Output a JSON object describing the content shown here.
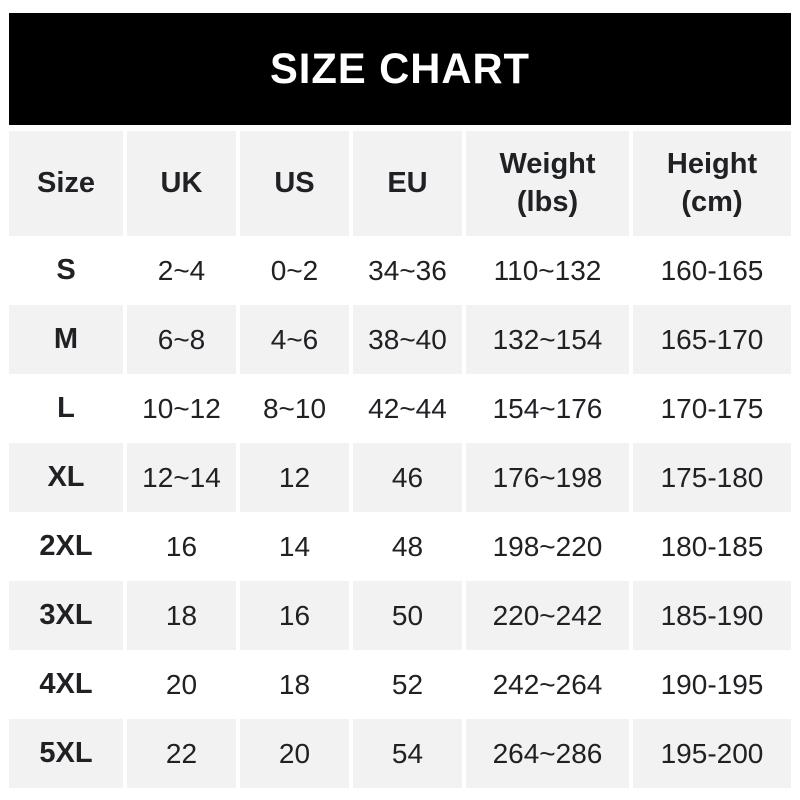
{
  "title": "SIZE CHART",
  "colors": {
    "banner_background": "#000000",
    "banner_text": "#ffffff",
    "stripe_background": "#f2f2f2",
    "row_background": "#ffffff",
    "text": "#202124"
  },
  "chart_data": {
    "type": "table",
    "title": "SIZE CHART",
    "columns": [
      {
        "label": "Size",
        "sublabel": ""
      },
      {
        "label": "UK",
        "sublabel": ""
      },
      {
        "label": "US",
        "sublabel": ""
      },
      {
        "label": "EU",
        "sublabel": ""
      },
      {
        "label": "Weight",
        "sublabel": "(lbs)"
      },
      {
        "label": "Height",
        "sublabel": "(cm)"
      }
    ],
    "rows": [
      {
        "size": "S",
        "uk": "2~4",
        "us": "0~2",
        "eu": "34~36",
        "weight_lbs": "110~132",
        "height_cm": "160-165"
      },
      {
        "size": "M",
        "uk": "6~8",
        "us": "4~6",
        "eu": "38~40",
        "weight_lbs": "132~154",
        "height_cm": "165-170"
      },
      {
        "size": "L",
        "uk": "10~12",
        "us": "8~10",
        "eu": "42~44",
        "weight_lbs": "154~176",
        "height_cm": "170-175"
      },
      {
        "size": "XL",
        "uk": "12~14",
        "us": "12",
        "eu": "46",
        "weight_lbs": "176~198",
        "height_cm": "175-180"
      },
      {
        "size": "2XL",
        "uk": "16",
        "us": "14",
        "eu": "48",
        "weight_lbs": "198~220",
        "height_cm": "180-185"
      },
      {
        "size": "3XL",
        "uk": "18",
        "us": "16",
        "eu": "50",
        "weight_lbs": "220~242",
        "height_cm": "185-190"
      },
      {
        "size": "4XL",
        "uk": "20",
        "us": "18",
        "eu": "52",
        "weight_lbs": "242~264",
        "height_cm": "190-195"
      },
      {
        "size": "5XL",
        "uk": "22",
        "us": "20",
        "eu": "54",
        "weight_lbs": "264~286",
        "height_cm": "195-200"
      }
    ]
  }
}
